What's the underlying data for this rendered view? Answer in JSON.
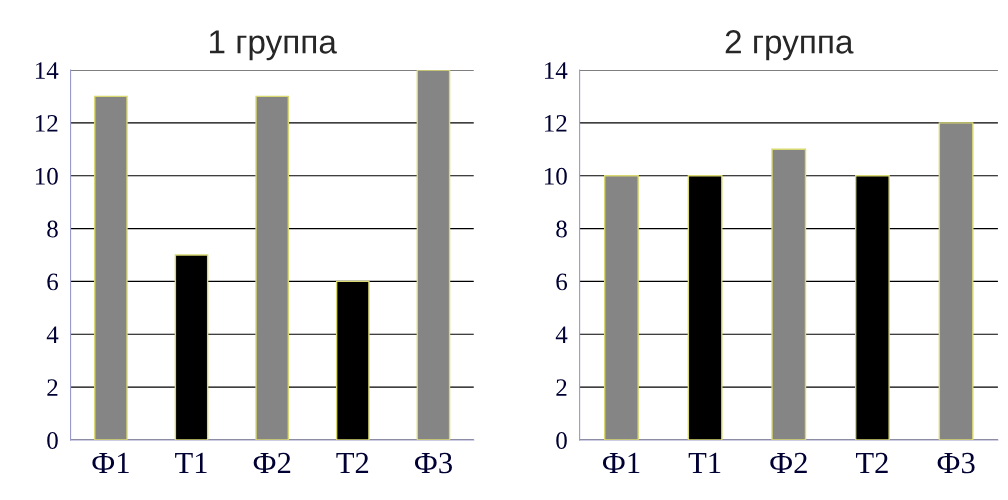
{
  "chart_data": [
    {
      "type": "bar",
      "title": "1 группа",
      "categories": [
        "Ф1",
        "Т1",
        "Ф2",
        "Т2",
        "Ф3"
      ],
      "values": [
        13,
        7,
        13,
        6,
        14
      ],
      "colors": [
        "#858585",
        "#000000",
        "#858585",
        "#000000",
        "#858585"
      ],
      "ylim": [
        0,
        14
      ],
      "yticks": [
        0,
        2,
        4,
        6,
        8,
        10,
        12,
        14
      ],
      "grid": "y",
      "legend": false
    },
    {
      "type": "bar",
      "title": "2 группа",
      "categories": [
        "Ф1",
        "Т1",
        "Ф2",
        "Т2",
        "Ф3"
      ],
      "values": [
        10,
        10,
        11,
        10,
        12
      ],
      "colors": [
        "#858585",
        "#000000",
        "#858585",
        "#000000",
        "#858585"
      ],
      "ylim": [
        0,
        14
      ],
      "yticks": [
        0,
        2,
        4,
        6,
        8,
        10,
        12,
        14
      ],
      "grid": "y",
      "legend": false
    }
  ]
}
